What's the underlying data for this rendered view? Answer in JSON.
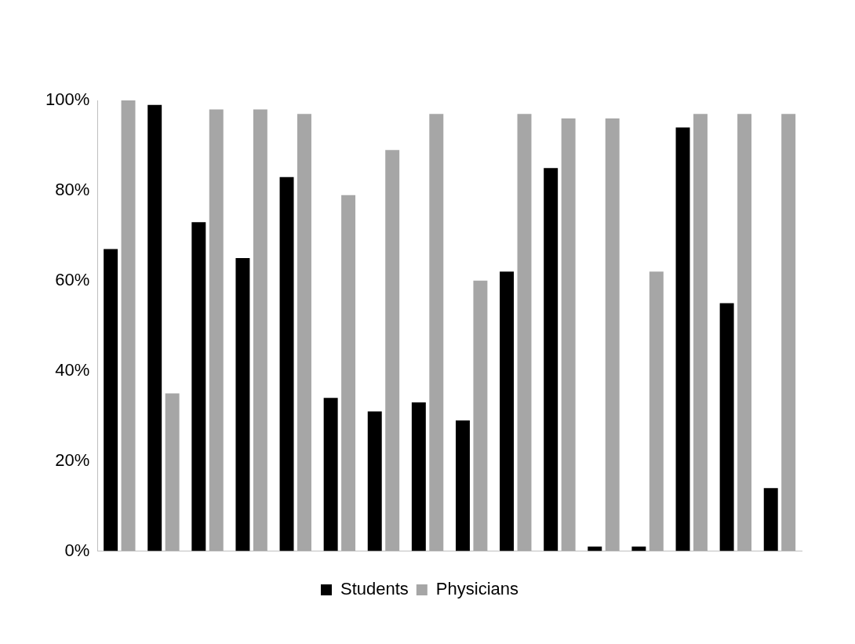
{
  "chart_data": {
    "type": "bar",
    "categories": [
      null,
      null,
      null,
      null,
      null,
      null,
      null,
      null,
      null,
      null,
      null,
      null,
      null,
      null,
      null,
      null
    ],
    "series": [
      {
        "name": "Students",
        "color": "#000000",
        "values": [
          67,
          99,
          73,
          65,
          83,
          34,
          31,
          33,
          29,
          62,
          85,
          1,
          1,
          94,
          55,
          14
        ]
      },
      {
        "name": "Physicians",
        "color": "#a6a6a6",
        "values": [
          100,
          35,
          98,
          98,
          97,
          79,
          89,
          97,
          60,
          97,
          96,
          96,
          62,
          97,
          97,
          97
        ]
      }
    ],
    "ylim": [
      0,
      100
    ],
    "yticks": [
      {
        "value": 0,
        "label": "0%"
      },
      {
        "value": 20,
        "label": "20%"
      },
      {
        "value": 40,
        "label": "40%"
      },
      {
        "value": 60,
        "label": "60%"
      },
      {
        "value": 80,
        "label": "80%"
      },
      {
        "value": 100,
        "label": "100%"
      }
    ],
    "grid": false,
    "legend": "bottom"
  }
}
